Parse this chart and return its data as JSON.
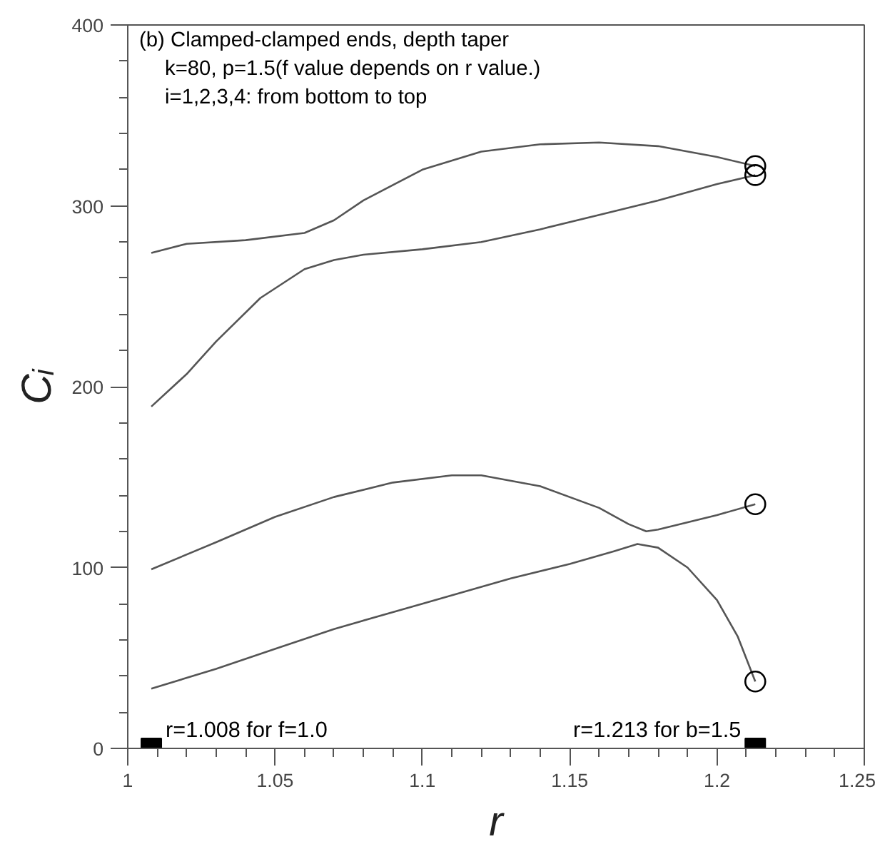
{
  "chart_data": {
    "type": "line",
    "xlabel": "r",
    "ylabel": "Cᵢ",
    "annotations": [
      "(b) Clamped-clamped ends, depth taper",
      "k=80, p=1.5(f value depends on r value.)",
      "i=1,2,3,4: from bottom to top",
      {
        "text": "r=1.008 for f=1.0",
        "x": 1.008,
        "y": 0
      },
      {
        "text": "r=1.213 for b=1.5",
        "x": 1.213,
        "y": 0
      }
    ],
    "xlim": [
      1,
      1.25
    ],
    "ylim": [
      0,
      400
    ],
    "xticks": [
      1,
      1.05,
      1.1,
      1.15,
      1.2,
      1.25,
      {
        "value": 1.01,
        "label": null
      },
      {
        "value": 1.02,
        "label": null
      },
      {
        "value": 1.03,
        "label": null
      },
      {
        "value": 1.04,
        "label": null
      },
      {
        "value": 1.06,
        "label": null
      },
      {
        "value": 1.07,
        "label": null
      },
      {
        "value": 1.08,
        "label": null
      },
      {
        "value": 1.09,
        "label": null
      },
      {
        "value": 1.11,
        "label": null
      },
      {
        "value": 1.12,
        "label": null
      },
      {
        "value": 1.13,
        "label": null
      },
      {
        "value": 1.14,
        "label": null
      },
      {
        "value": 1.16,
        "label": null
      },
      {
        "value": 1.17,
        "label": null
      },
      {
        "value": 1.18,
        "label": null
      },
      {
        "value": 1.19,
        "label": null
      },
      {
        "value": 1.21,
        "label": null
      },
      {
        "value": 1.22,
        "label": null
      },
      {
        "value": 1.23,
        "label": null
      },
      {
        "value": 1.24,
        "label": null
      }
    ],
    "yticks": [
      0,
      100,
      200,
      300,
      400,
      {
        "value": 20,
        "label": null
      },
      {
        "value": 40,
        "label": null
      },
      {
        "value": 60,
        "label": null
      },
      {
        "value": 80,
        "label": null
      },
      {
        "value": 120,
        "label": null
      },
      {
        "value": 140,
        "label": null
      },
      {
        "value": 160,
        "label": null
      },
      {
        "value": 180,
        "label": null
      },
      {
        "value": 220,
        "label": null
      },
      {
        "value": 240,
        "label": null
      },
      {
        "value": 260,
        "label": null
      },
      {
        "value": 280,
        "label": null
      },
      {
        "value": 320,
        "label": null
      },
      {
        "value": 340,
        "label": null
      },
      {
        "value": 360,
        "label": null
      },
      {
        "value": 380,
        "label": null
      }
    ],
    "grid": false,
    "marker": "none",
    "line_style": "solid",
    "series": [
      {
        "color": "#555555",
        "x": [
          1.008,
          1.03,
          1.05,
          1.07,
          1.1,
          1.13,
          1.15,
          1.165,
          1.173,
          1.18,
          1.19,
          1.2,
          1.207,
          1.213
        ],
        "values": [
          33,
          44,
          55,
          66,
          80,
          94,
          102,
          109,
          113,
          111,
          100,
          82,
          62,
          37
        ]
      },
      {
        "color": "#555555",
        "x": [
          1.008,
          1.03,
          1.05,
          1.07,
          1.09,
          1.11,
          1.12,
          1.14,
          1.16,
          1.17,
          1.176,
          1.18,
          1.2,
          1.213
        ],
        "values": [
          99,
          114,
          128,
          139,
          147,
          151,
          151,
          145,
          133,
          124,
          120,
          121,
          129,
          135
        ]
      },
      {
        "color": "#555555",
        "x": [
          1.008,
          1.02,
          1.03,
          1.045,
          1.06,
          1.07,
          1.08,
          1.1,
          1.12,
          1.14,
          1.16,
          1.18,
          1.2,
          1.213
        ],
        "values": [
          189,
          207,
          225,
          249,
          265,
          270,
          273,
          276,
          280,
          287,
          295,
          303,
          312,
          317
        ]
      },
      {
        "color": "#555555",
        "x": [
          1.008,
          1.02,
          1.04,
          1.06,
          1.07,
          1.08,
          1.1,
          1.12,
          1.14,
          1.16,
          1.18,
          1.2,
          1.213
        ],
        "values": [
          274,
          279,
          281,
          285,
          292,
          303,
          320,
          330,
          334,
          335,
          333,
          327,
          322
        ]
      },
      {
        "type": "scatter",
        "marker": "circle",
        "color": "#000000",
        "x": [
          1.213,
          1.213,
          1.213,
          1.213
        ],
        "values": [
          37,
          135,
          317,
          322
        ]
      },
      {
        "type": "scatter",
        "marker": "square",
        "color": "#000000",
        "x": [
          1.008,
          1.213
        ],
        "values": [
          0,
          0
        ]
      }
    ]
  }
}
